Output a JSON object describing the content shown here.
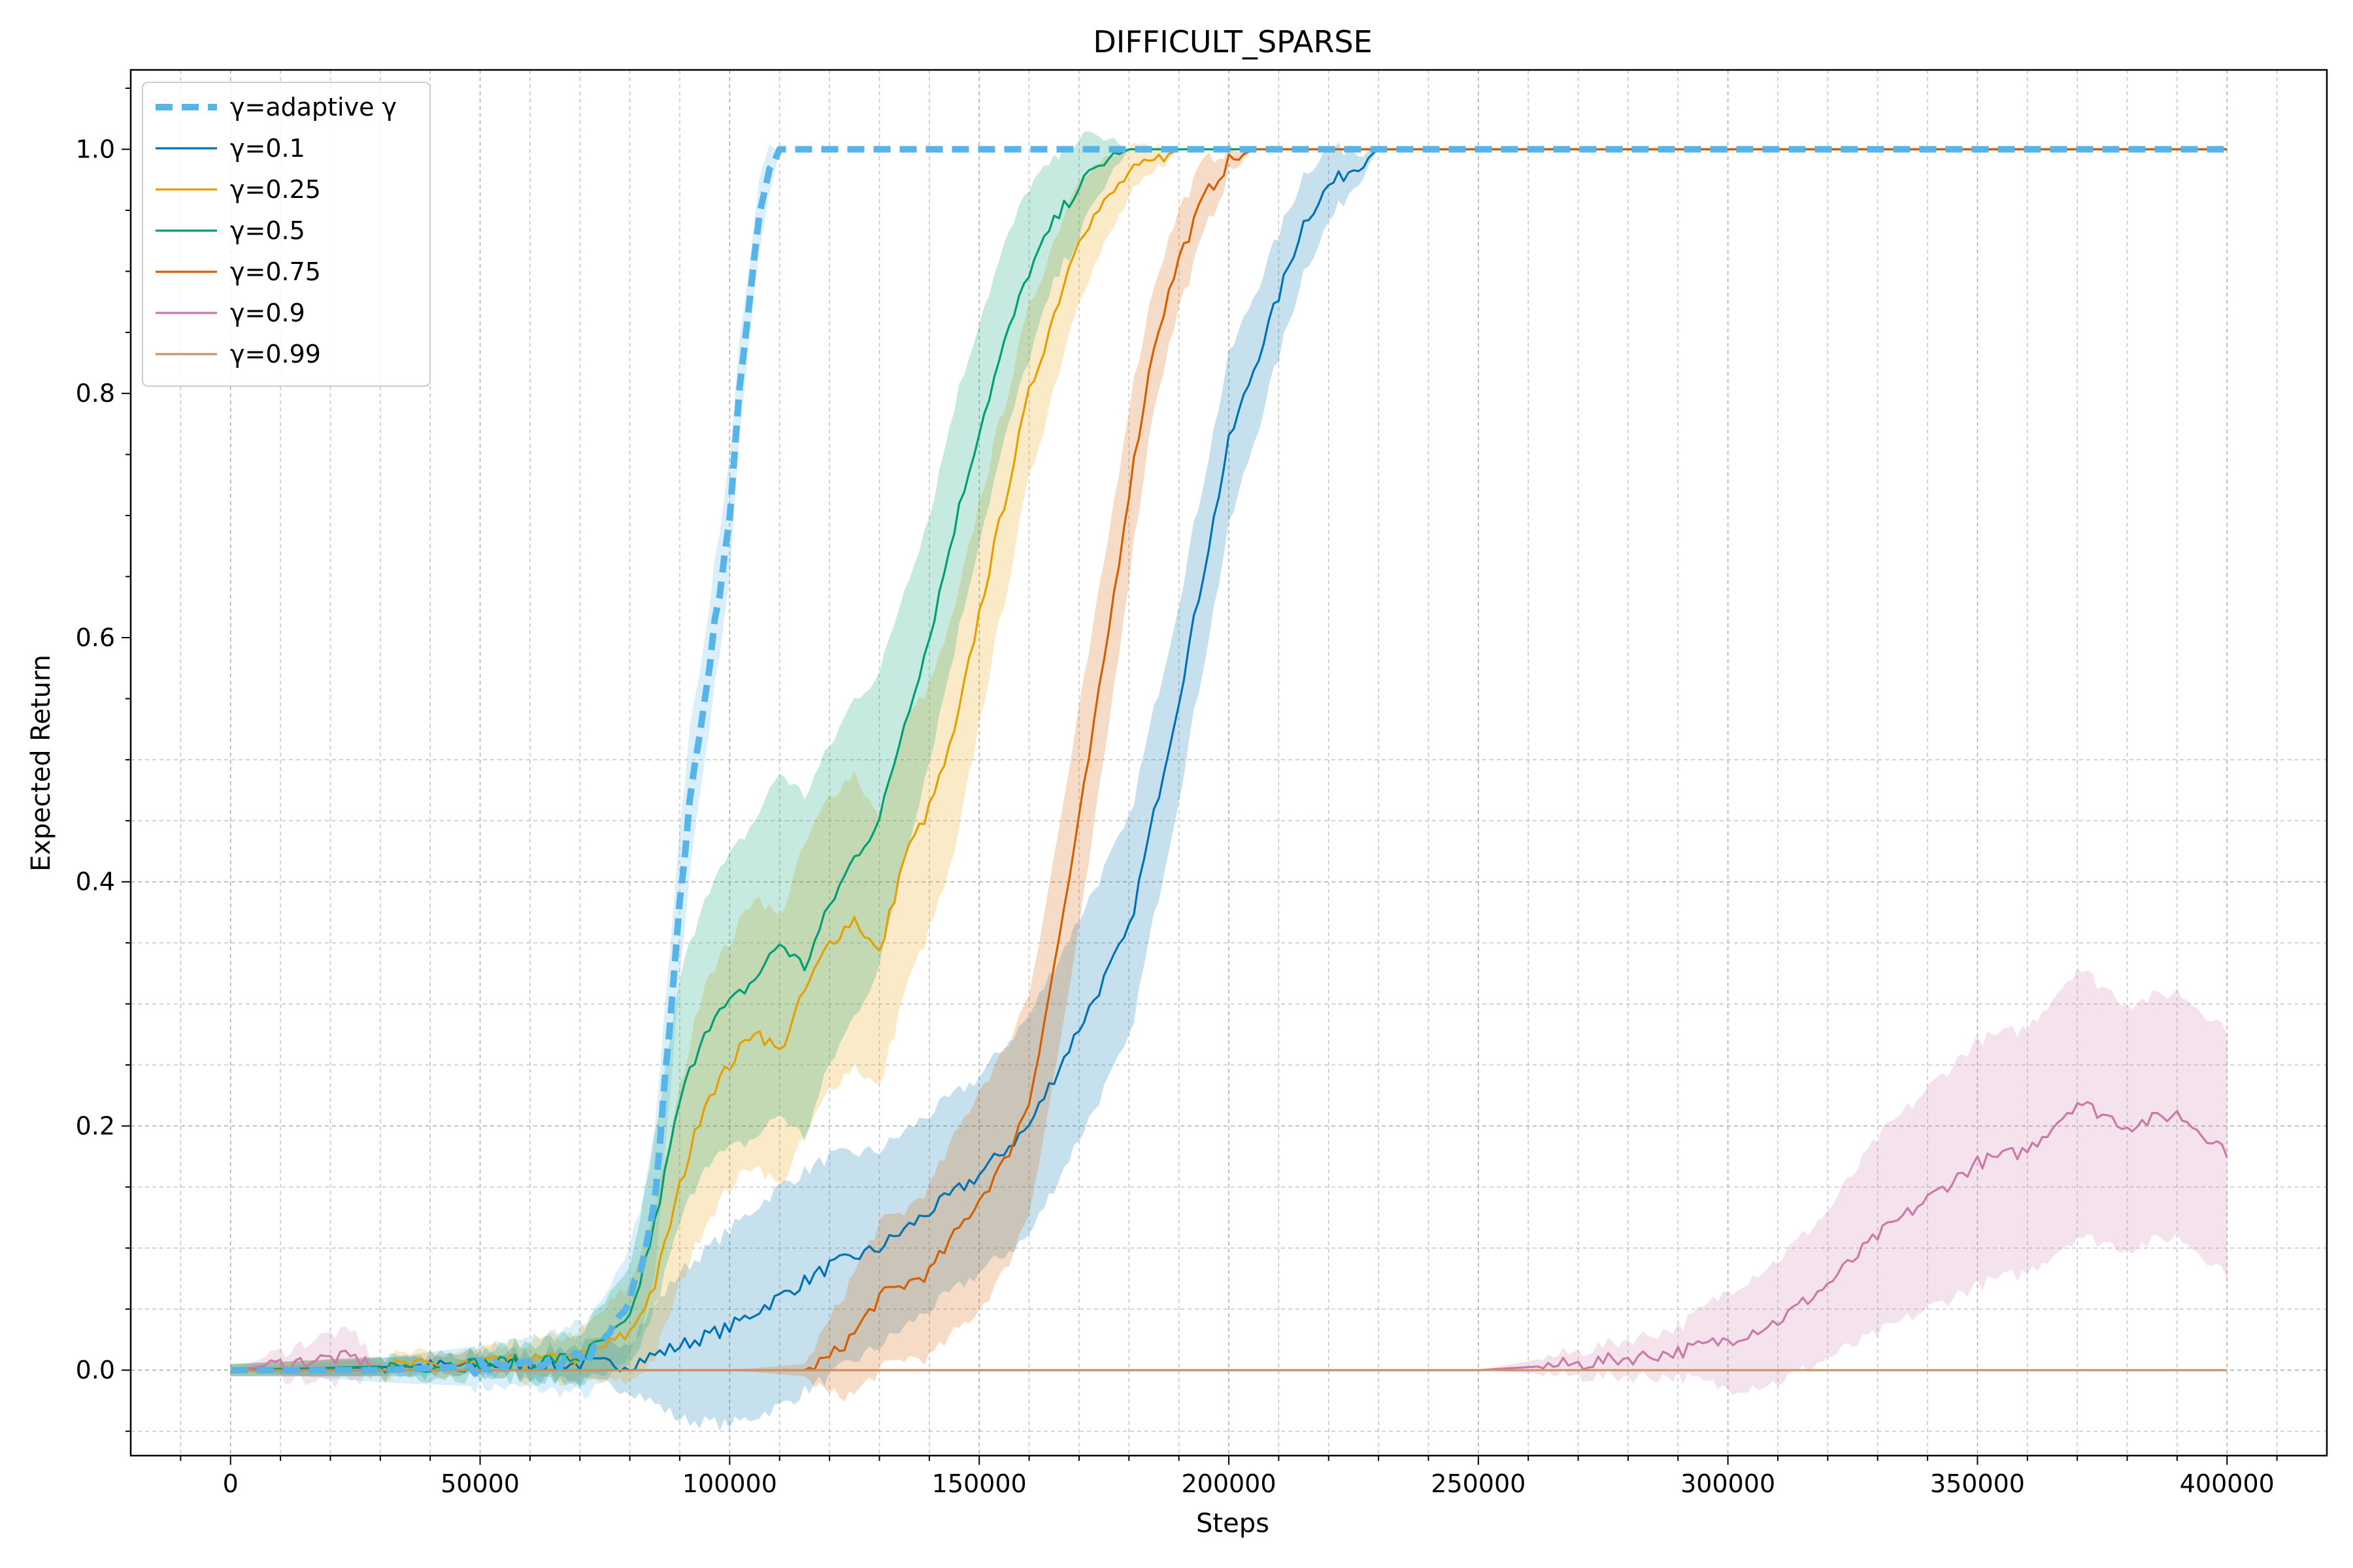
{
  "chart_data": {
    "type": "line",
    "title": "DIFFICULT_SPARSE",
    "xlabel": "Steps",
    "ylabel": "Expected Return",
    "xlim": [
      -20000,
      420000
    ],
    "ylim": [
      -0.07,
      1.065
    ],
    "xticks": [
      0,
      50000,
      100000,
      150000,
      200000,
      250000,
      300000,
      350000,
      400000
    ],
    "xtick_labels": [
      "0",
      "50000",
      "100000",
      "150000",
      "200000",
      "250000",
      "300000",
      "350000",
      "400000"
    ],
    "yticks": [
      0.0,
      0.2,
      0.4,
      0.6,
      0.8,
      1.0
    ],
    "ytick_labels": [
      "0.0",
      "0.2",
      "0.4",
      "0.6",
      "0.8",
      "1.0"
    ],
    "grid": true,
    "legend_position": "top-left",
    "series": [
      {
        "name": "γ=adaptive γ",
        "color": "#56b4e9",
        "dashed": true,
        "x": [
          0,
          30000,
          60000,
          72000,
          78000,
          82000,
          85000,
          88000,
          90000,
          92000,
          94000,
          96000,
          98000,
          100000,
          102000,
          104000,
          106000,
          108000,
          110000,
          400000
        ],
        "y": [
          0.0,
          0.0,
          0.005,
          0.01,
          0.04,
          0.08,
          0.14,
          0.28,
          0.38,
          0.47,
          0.52,
          0.58,
          0.64,
          0.7,
          0.8,
          0.88,
          0.95,
          0.985,
          1.0,
          1.0
        ],
        "band": [
          0.0,
          0.01,
          0.02,
          0.03,
          0.04,
          0.05,
          0.06,
          0.06,
          0.06,
          0.06,
          0.05,
          0.05,
          0.05,
          0.05,
          0.04,
          0.03,
          0.03,
          0.02,
          0.0,
          0.0
        ]
      },
      {
        "name": "γ=0.1",
        "color": "#0072b2",
        "dashed": false,
        "x": [
          0,
          60000,
          80000,
          90000,
          100000,
          110000,
          120000,
          130000,
          140000,
          150000,
          160000,
          170000,
          180000,
          190000,
          200000,
          205000,
          210000,
          215000,
          220000,
          230000,
          400000
        ],
        "y": [
          0.0,
          0.005,
          0.005,
          0.02,
          0.035,
          0.06,
          0.085,
          0.1,
          0.13,
          0.16,
          0.2,
          0.28,
          0.36,
          0.55,
          0.76,
          0.82,
          0.88,
          0.94,
          0.97,
          1.0,
          1.0
        ],
        "band": [
          0.005,
          0.01,
          0.02,
          0.06,
          0.08,
          0.09,
          0.09,
          0.08,
          0.08,
          0.08,
          0.09,
          0.09,
          0.09,
          0.08,
          0.07,
          0.06,
          0.05,
          0.04,
          0.03,
          0.0,
          0.0
        ]
      },
      {
        "name": "γ=0.25",
        "color": "#e69f00",
        "dashed": false,
        "x": [
          0,
          50000,
          70000,
          80000,
          85000,
          90000,
          95000,
          100000,
          105000,
          110000,
          115000,
          120000,
          125000,
          130000,
          135000,
          140000,
          145000,
          150000,
          160000,
          170000,
          180000,
          190000,
          400000
        ],
        "y": [
          0.0,
          0.005,
          0.01,
          0.03,
          0.07,
          0.15,
          0.22,
          0.25,
          0.28,
          0.26,
          0.31,
          0.35,
          0.37,
          0.34,
          0.42,
          0.46,
          0.52,
          0.62,
          0.8,
          0.93,
          0.98,
          1.0,
          1.0
        ],
        "band": [
          0.005,
          0.01,
          0.02,
          0.04,
          0.06,
          0.08,
          0.1,
          0.1,
          0.11,
          0.11,
          0.12,
          0.12,
          0.12,
          0.11,
          0.11,
          0.1,
          0.1,
          0.09,
          0.07,
          0.05,
          0.02,
          0.0,
          0.0
        ]
      },
      {
        "name": "γ=0.5",
        "color": "#009e73",
        "dashed": false,
        "x": [
          0,
          50000,
          70000,
          80000,
          85000,
          90000,
          95000,
          100000,
          105000,
          110000,
          115000,
          120000,
          125000,
          130000,
          135000,
          140000,
          145000,
          150000,
          155000,
          160000,
          165000,
          170000,
          175000,
          180000,
          400000
        ],
        "y": [
          0.0,
          0.005,
          0.01,
          0.04,
          0.12,
          0.22,
          0.28,
          0.3,
          0.32,
          0.35,
          0.33,
          0.38,
          0.42,
          0.45,
          0.53,
          0.6,
          0.69,
          0.77,
          0.84,
          0.9,
          0.94,
          0.97,
          0.99,
          1.0,
          1.0
        ],
        "band": [
          0.005,
          0.01,
          0.02,
          0.04,
          0.07,
          0.1,
          0.11,
          0.12,
          0.13,
          0.14,
          0.14,
          0.13,
          0.13,
          0.12,
          0.11,
          0.1,
          0.1,
          0.09,
          0.08,
          0.07,
          0.05,
          0.04,
          0.02,
          0.0,
          0.0
        ]
      },
      {
        "name": "γ=0.75",
        "color": "#d55e00",
        "dashed": false,
        "x": [
          0,
          100000,
          115000,
          120000,
          125000,
          130000,
          135000,
          140000,
          145000,
          150000,
          155000,
          160000,
          165000,
          170000,
          175000,
          180000,
          185000,
          190000,
          195000,
          200000,
          205000,
          400000
        ],
        "y": [
          0.0,
          0.0,
          0.0,
          0.01,
          0.03,
          0.06,
          0.07,
          0.08,
          0.11,
          0.14,
          0.17,
          0.22,
          0.33,
          0.45,
          0.58,
          0.72,
          0.84,
          0.91,
          0.96,
          0.99,
          1.0,
          1.0
        ],
        "band": [
          0.0,
          0.0,
          0.005,
          0.03,
          0.05,
          0.06,
          0.06,
          0.07,
          0.08,
          0.09,
          0.09,
          0.09,
          0.09,
          0.09,
          0.08,
          0.07,
          0.05,
          0.04,
          0.03,
          0.01,
          0.0,
          0.0
        ]
      },
      {
        "name": "γ=0.9",
        "color": "#cc79a7",
        "dashed": false,
        "x": [
          0,
          20000,
          25000,
          30000,
          250000,
          270000,
          290000,
          300000,
          310000,
          320000,
          330000,
          340000,
          350000,
          360000,
          370000,
          380000,
          390000,
          400000
        ],
        "y": [
          0.0,
          0.01,
          0.01,
          0.0,
          0.0,
          0.005,
          0.015,
          0.025,
          0.04,
          0.07,
          0.11,
          0.14,
          0.17,
          0.18,
          0.22,
          0.2,
          0.21,
          0.18
        ],
        "band": [
          0.0,
          0.02,
          0.02,
          0.0,
          0.0,
          0.01,
          0.02,
          0.04,
          0.05,
          0.06,
          0.08,
          0.09,
          0.1,
          0.1,
          0.11,
          0.1,
          0.1,
          0.1
        ]
      },
      {
        "name": "γ=0.99",
        "color": "#ca9161",
        "dashed": false,
        "x": [
          0,
          400000
        ],
        "y": [
          0.0,
          0.0
        ],
        "band": [
          0.0,
          0.0
        ]
      }
    ]
  }
}
